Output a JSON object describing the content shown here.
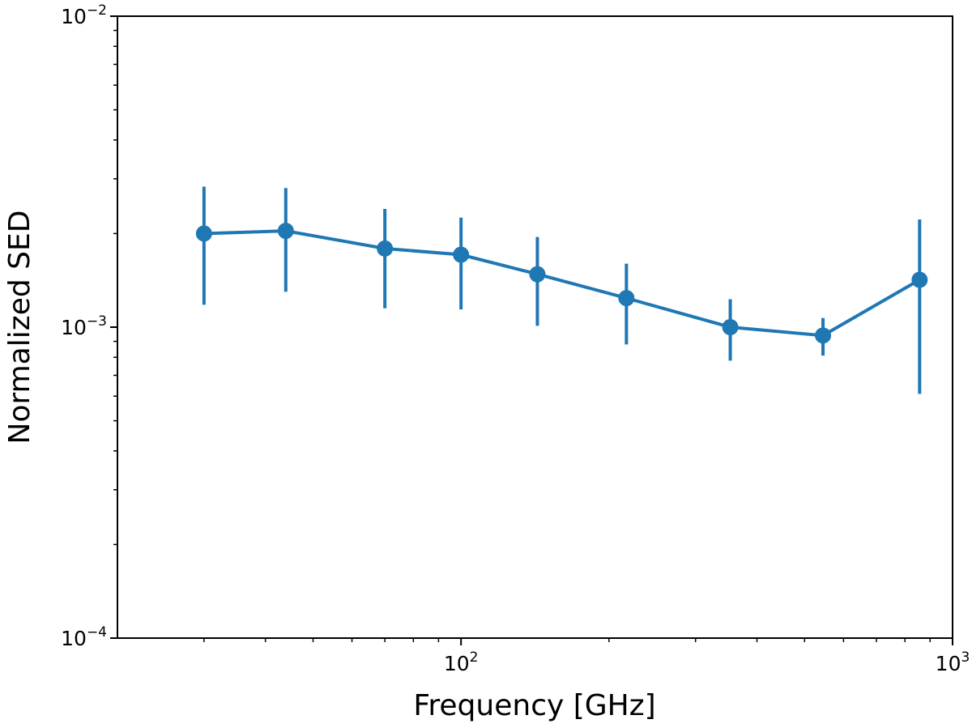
{
  "chart_data": {
    "type": "line",
    "xlabel": "Frequency [GHz]",
    "ylabel": "Normalized SED",
    "x_scale": "log",
    "y_scale": "log",
    "xlim": [
      20,
      1000
    ],
    "ylim": [
      0.0001,
      0.01
    ],
    "x_tick_labels": [
      {
        "value": 100,
        "base": "10",
        "exp": "2"
      },
      {
        "value": 1000,
        "base": "10",
        "exp": "3"
      }
    ],
    "y_tick_labels": [
      {
        "value": 0.0001,
        "base": "10",
        "exp": "−4"
      },
      {
        "value": 0.001,
        "base": "10",
        "exp": "−3"
      },
      {
        "value": 0.01,
        "base": "10",
        "exp": "−2"
      }
    ],
    "grid": false,
    "color": "#1f77b4",
    "series": [
      {
        "x": [
          30,
          44,
          70,
          100,
          143,
          217,
          353,
          545,
          857
        ],
        "y": [
          0.002,
          0.00204,
          0.00179,
          0.00171,
          0.00148,
          0.00124,
          0.001,
          0.00094,
          0.00142
        ],
        "ylow": [
          0.00118,
          0.0013,
          0.00115,
          0.00114,
          0.00101,
          0.00088,
          0.00078,
          0.00081,
          0.00061
        ],
        "yhigh": [
          0.00283,
          0.0028,
          0.0024,
          0.00225,
          0.00195,
          0.0016,
          0.00123,
          0.00107,
          0.00222
        ]
      }
    ]
  }
}
